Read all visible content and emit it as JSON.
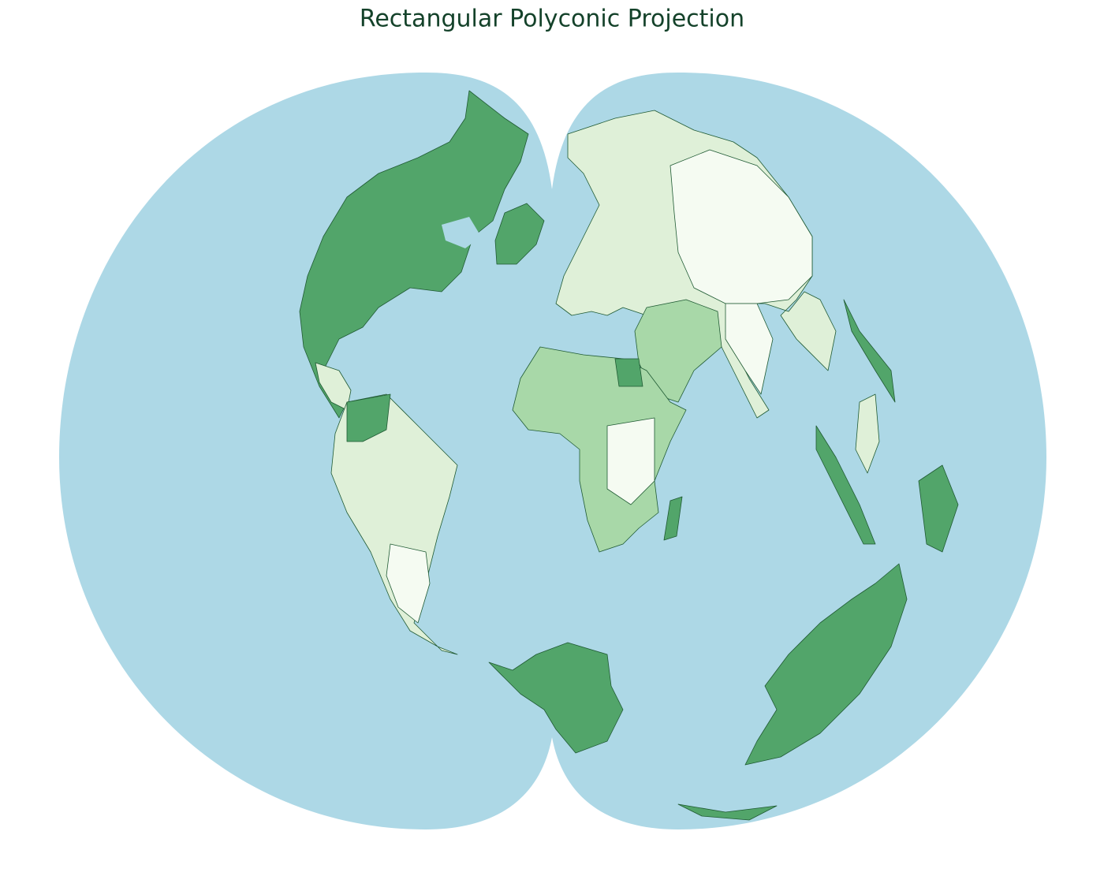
{
  "title": "Rectangular Polyconic Projection"
}
